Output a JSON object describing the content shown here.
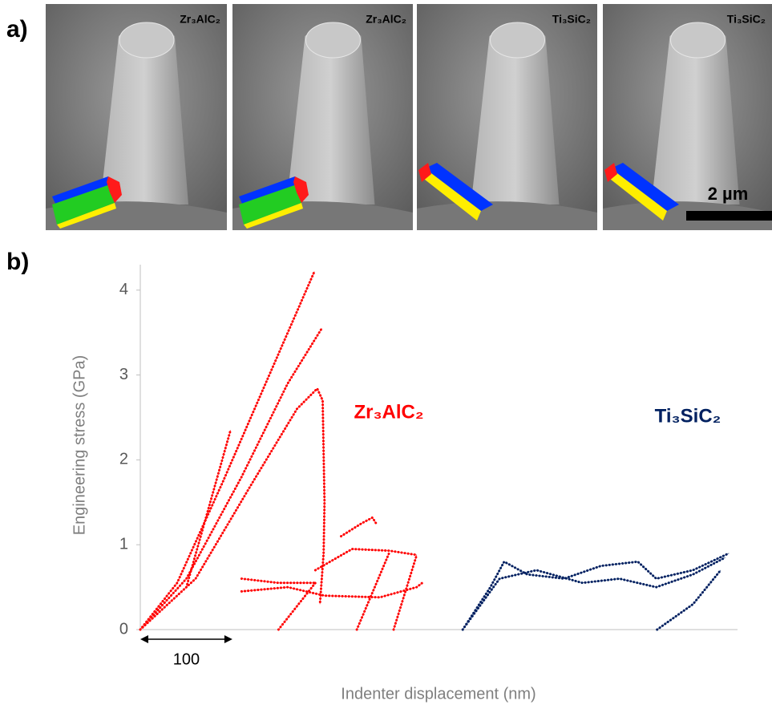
{
  "figure": {
    "panel_a": {
      "label": "a)",
      "images": [
        "Zr₃AlC₂",
        "Zr₃AlC₂",
        "Ti₃SiC₂",
        "Ti₃SiC₂"
      ],
      "scale_bar": "2 µm"
    },
    "panel_b": {
      "label": "b)"
    }
  },
  "chart_data": {
    "type": "line",
    "ylabel": "Engineering stress (GPa)",
    "xlabel": "Indenter displacement (nm)",
    "xlim": [
      0,
      650
    ],
    "ylim": [
      0,
      4.3
    ],
    "yticks": [
      0,
      1,
      2,
      3,
      4
    ],
    "scale_bar": 100,
    "series": [
      {
        "name": "Zr₃AlC₂",
        "color": "#ff0000",
        "x": [
          0,
          40,
          90,
          140,
          189,
          null,
          0,
          50,
          110,
          160,
          197,
          null,
          0,
          60,
          120,
          170,
          192,
          198,
          200,
          199,
          195,
          null,
          0,
          50,
          98,
          null,
          110,
          150,
          190,
          null,
          190,
          230,
          270,
          300,
          null,
          110,
          160,
          200,
          260,
          300,
          306,
          null,
          218,
          240,
          252,
          256,
          null,
          150,
          190,
          null,
          235,
          270,
          null,
          275,
          300
        ],
        "values": [
          0,
          0.55,
          1.75,
          3.0,
          4.22,
          null,
          0,
          0.6,
          1.8,
          2.9,
          3.55,
          null,
          0,
          0.6,
          1.7,
          2.6,
          2.84,
          2.7,
          1.5,
          0.9,
          0.3,
          null,
          0,
          0.5,
          2.35,
          null,
          0.6,
          0.55,
          0.55,
          null,
          0.7,
          0.95,
          0.93,
          0.88,
          null,
          0.45,
          0.5,
          0.4,
          0.38,
          0.5,
          0.55,
          null,
          1.1,
          1.25,
          1.32,
          1.25,
          null,
          0,
          0.55,
          null,
          0,
          0.9,
          null,
          0,
          0.88
        ]
      },
      {
        "name": "Ti₃SiC₂",
        "color": "#002060",
        "x": [
          350,
          380,
          395,
          420,
          460,
          500,
          540,
          560,
          600,
          639,
          null,
          350,
          390,
          430,
          480,
          520,
          560,
          600,
          635,
          null,
          561,
          600,
          630
        ],
        "values": [
          0,
          0.5,
          0.8,
          0.65,
          0.6,
          0.75,
          0.8,
          0.6,
          0.7,
          0.9,
          null,
          0,
          0.6,
          0.7,
          0.55,
          0.6,
          0.5,
          0.65,
          0.85,
          null,
          0,
          0.3,
          0.7
        ]
      }
    ]
  }
}
